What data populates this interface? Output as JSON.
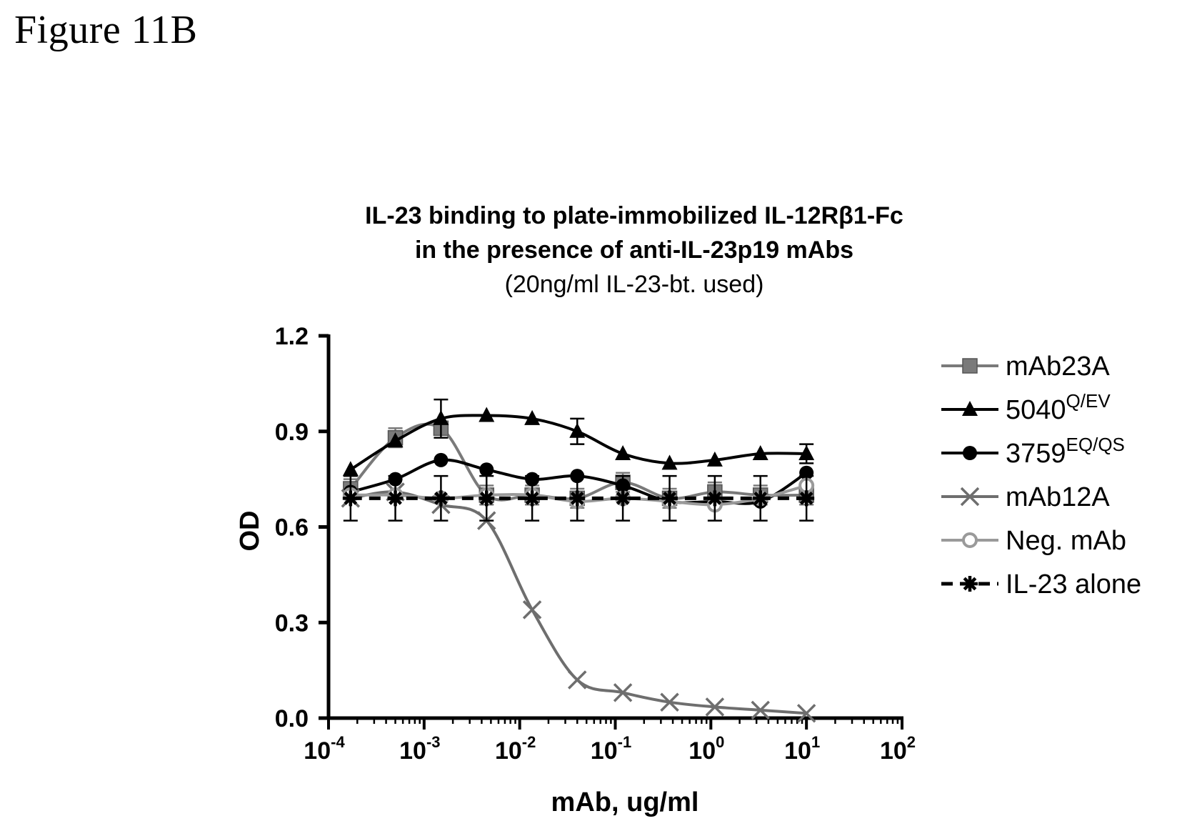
{
  "figure_label": "Figure 11B",
  "chart_data": {
    "type": "line",
    "title_line1": "IL-23 binding to plate-immobilized IL-12Rβ1-Fc",
    "title_line2": "in the presence of anti-IL-23p19 mAbs",
    "subtitle": "(20ng/ml IL-23-bt. used)",
    "xlabel": "mAb, ug/ml",
    "ylabel": "OD",
    "xscale": "log",
    "xlim": [
      0.0001,
      100
    ],
    "ylim": [
      0.0,
      1.2
    ],
    "x_ticks": [
      {
        "base": "10",
        "exp": "-4",
        "value": 0.0001
      },
      {
        "base": "10",
        "exp": "-3",
        "value": 0.001
      },
      {
        "base": "10",
        "exp": "-2",
        "value": 0.01
      },
      {
        "base": "10",
        "exp": "-1",
        "value": 0.1
      },
      {
        "base": "10",
        "exp": "0",
        "value": 1
      },
      {
        "base": "10",
        "exp": "1",
        "value": 10
      },
      {
        "base": "10",
        "exp": "2",
        "value": 100
      }
    ],
    "y_ticks": [
      "0.0",
      "0.3",
      "0.6",
      "0.9",
      "1.2"
    ],
    "legend_position": "right",
    "x": [
      0.00017,
      0.0005,
      0.0015,
      0.0045,
      0.0135,
      0.04,
      0.12,
      0.37,
      1.1,
      3.3,
      10
    ],
    "series": [
      {
        "name": "mAb23A",
        "name_sup": "",
        "marker": "square",
        "color": "#7a7a7a",
        "dashed": false,
        "values": [
          0.72,
          0.88,
          0.91,
          0.7,
          0.7,
          0.69,
          0.74,
          0.69,
          0.71,
          0.7,
          0.7
        ],
        "errors": [
          0.03,
          0.03,
          0.02,
          0.03,
          0.03,
          0.03,
          0.03,
          0.03,
          0.03,
          0.03,
          0.03
        ]
      },
      {
        "name": "5040",
        "name_sup": "Q/EV",
        "marker": "triangle",
        "color": "#000000",
        "dashed": false,
        "values": [
          0.78,
          0.87,
          0.94,
          0.95,
          0.94,
          0.9,
          0.83,
          0.8,
          0.81,
          0.83,
          0.83
        ],
        "errors": [
          0.0,
          0.0,
          0.06,
          0.0,
          0.0,
          0.04,
          0.0,
          0.0,
          0.0,
          0.0,
          0.03
        ]
      },
      {
        "name": "3759",
        "name_sup": "EQ/QS",
        "marker": "circle",
        "color": "#000000",
        "dashed": false,
        "values": [
          0.71,
          0.75,
          0.81,
          0.78,
          0.75,
          0.76,
          0.73,
          0.68,
          0.68,
          0.68,
          0.77
        ],
        "errors": [
          0.0,
          0.0,
          0.0,
          0.0,
          0.0,
          0.0,
          0.0,
          0.0,
          0.0,
          0.0,
          0.0
        ]
      },
      {
        "name": "mAb12A",
        "name_sup": "",
        "marker": "x",
        "color": "#6e6e6e",
        "dashed": false,
        "values": [
          0.69,
          0.71,
          0.67,
          0.62,
          0.34,
          0.12,
          0.08,
          0.05,
          0.035,
          0.025,
          0.015
        ],
        "errors": [
          0.0,
          0.0,
          0.0,
          0.0,
          0.0,
          0.0,
          0.0,
          0.0,
          0.0,
          0.0,
          0.0
        ]
      },
      {
        "name": "Neg. mAb",
        "name_sup": "",
        "marker": "open-circle",
        "color": "#9a9a9a",
        "dashed": false,
        "values": [
          0.7,
          0.7,
          0.69,
          0.7,
          0.7,
          0.68,
          0.69,
          0.68,
          0.67,
          0.69,
          0.73
        ],
        "errors": [
          0.0,
          0.0,
          0.0,
          0.0,
          0.0,
          0.0,
          0.0,
          0.0,
          0.0,
          0.0,
          0.0
        ]
      },
      {
        "name": "IL-23 alone",
        "name_sup": "",
        "marker": "star",
        "color": "#000000",
        "dashed": true,
        "values": [
          0.69,
          0.69,
          0.69,
          0.69,
          0.69,
          0.69,
          0.69,
          0.69,
          0.69,
          0.69,
          0.69
        ],
        "errors": [
          0.07,
          0.07,
          0.07,
          0.07,
          0.07,
          0.07,
          0.07,
          0.07,
          0.07,
          0.07,
          0.07
        ]
      }
    ]
  }
}
